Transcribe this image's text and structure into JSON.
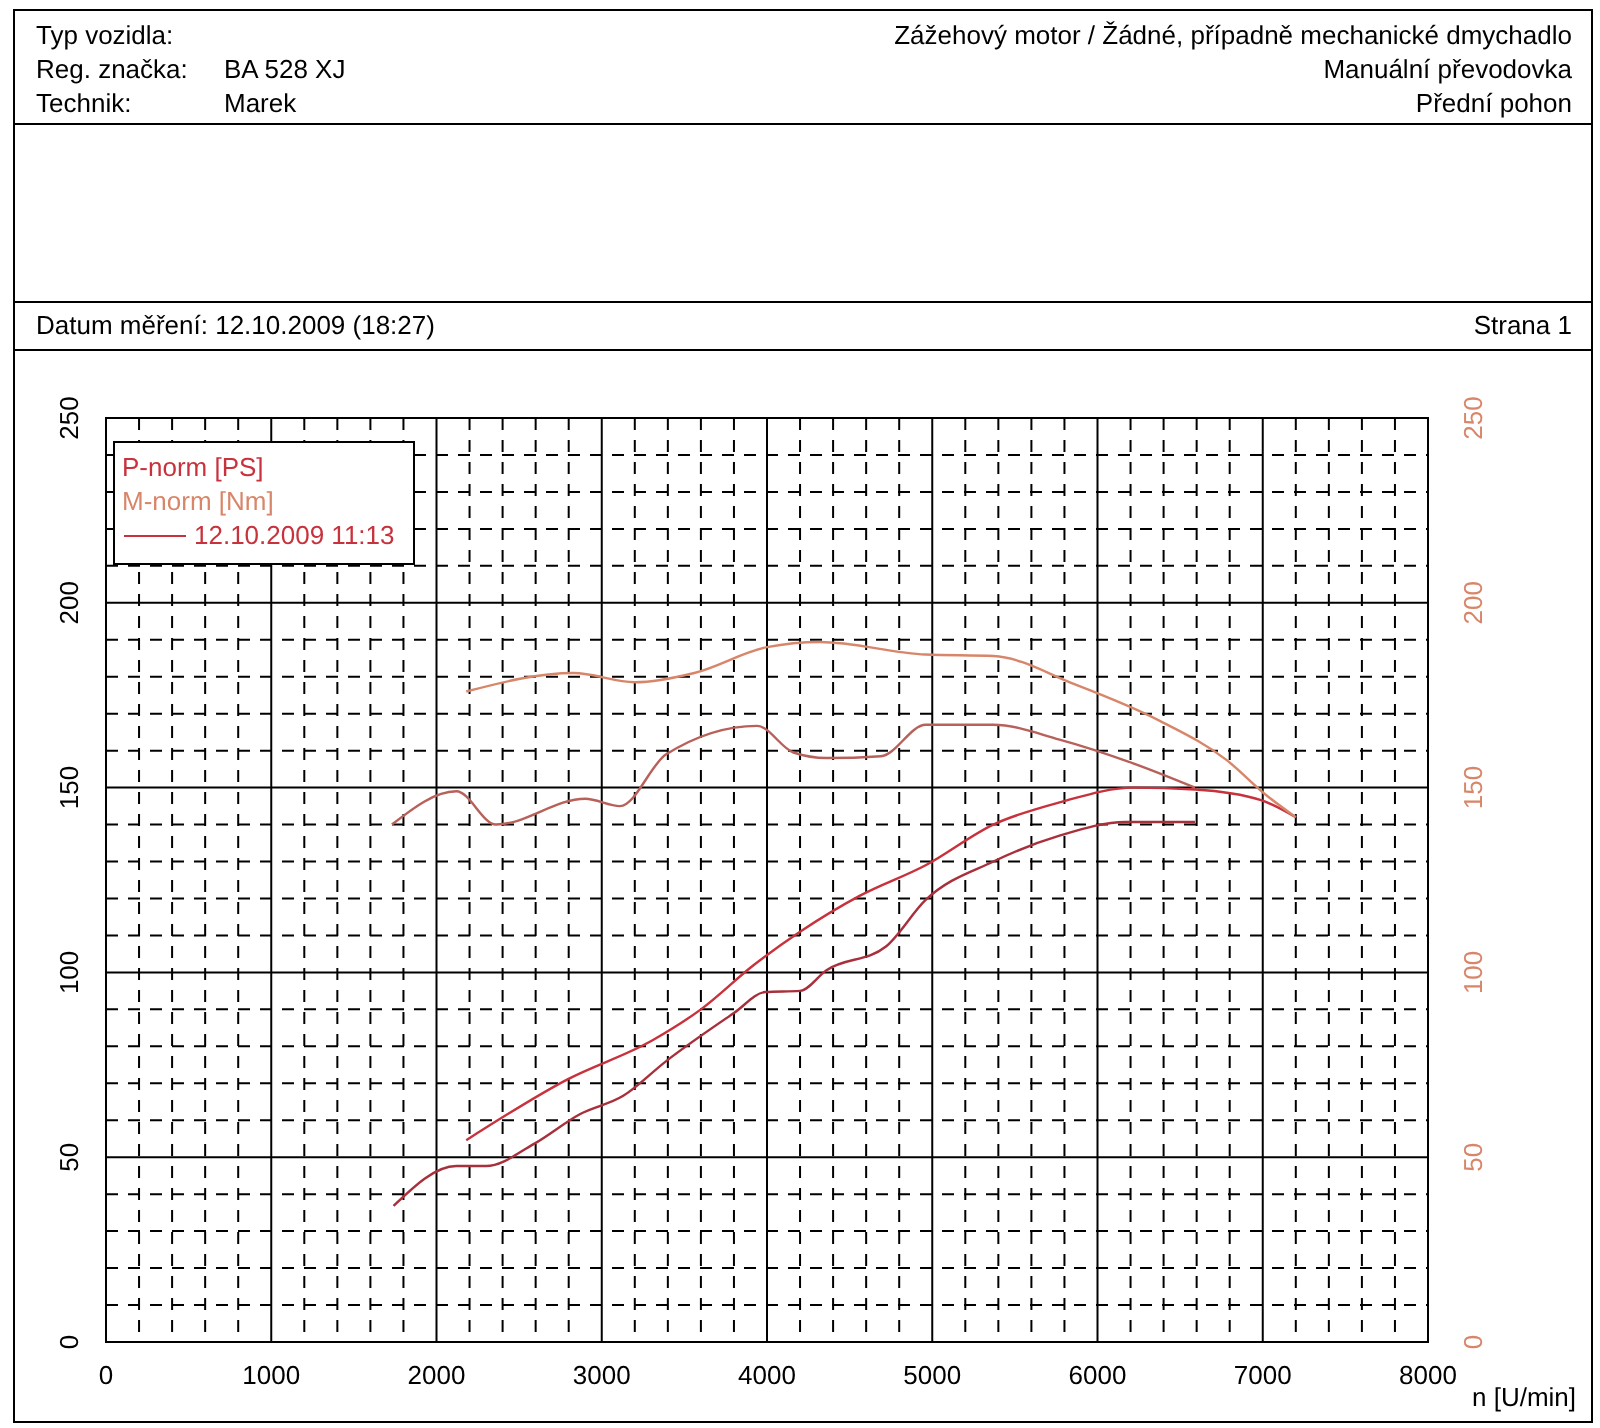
{
  "chart_data": {
    "type": "line",
    "annotations": [
      "Typ vozidla:",
      "Reg. značka:",
      "BA 528 XJ",
      "Technik:",
      "Marek",
      "Zážehový motor / Žádné, případně mechanické dmychadlo",
      "Manuální převodovka",
      "Přední pohon",
      "Datum měření: 12.10.2009 (18:27)",
      "Strana 1"
    ],
    "xlabel": "n [U/min]",
    "legend_title": "12.10.2009 11:13",
    "legend": "top left",
    "grid": true,
    "line_style": "solid",
    "xlim": [
      0,
      8000
    ],
    "xticks": [
      0,
      1000,
      2000,
      3000,
      4000,
      5000,
      6000,
      7000,
      8000
    ],
    "ylim": [
      0,
      250
    ],
    "yticks": [
      0,
      50,
      100,
      150,
      200,
      250
    ],
    "y2lim": [
      0,
      250
    ],
    "y2ticks": [
      0,
      50,
      100,
      150,
      200,
      250
    ],
    "series": [
      {
        "name": "P-norm [PS]",
        "color": "#c8323c",
        "x": [
          2180,
          2790,
          3310,
          3600,
          3920,
          4200,
          4560,
          4960,
          5370,
          5770,
          6220,
          6590,
          6990,
          7200
        ],
        "values": [
          54.6,
          71,
          81.7,
          90,
          102,
          111,
          120.7,
          129,
          140,
          146,
          150,
          149.5,
          146.6,
          142
        ]
      },
      {
        "name": "M-norm [Nm]",
        "axis": "y2",
        "color": "#d8866a",
        "x": [
          2180,
          2830,
          3200,
          3560,
          4000,
          4320,
          4960,
          5370,
          5860,
          6380,
          6780,
          7020,
          7200
        ],
        "values": [
          176,
          181,
          178.5,
          181,
          188,
          189.4,
          186,
          185.6,
          178,
          168,
          157.5,
          148,
          142
        ]
      },
      {
        "color": "#a8303c",
        "x": [
          1740,
          2120,
          2300,
          2590,
          2870,
          3130,
          3390,
          3800,
          3990,
          4200,
          4360,
          4720,
          4960,
          5370,
          5770,
          6170,
          6590
        ],
        "values": [
          36.8,
          47.6,
          47.6,
          53.6,
          61.7,
          66.6,
          76,
          89,
          94.7,
          95,
          100.6,
          107,
          119.6,
          130,
          137,
          140.7,
          140.7
        ]
      },
      {
        "axis": "y2",
        "color": "#b8605a",
        "x": [
          1730,
          2120,
          2360,
          2900,
          3110,
          3390,
          3940,
          4160,
          4360,
          4690,
          4960,
          5370,
          5770,
          6220,
          6590
        ],
        "values": [
          140,
          149,
          140,
          147,
          145,
          159,
          166.7,
          159.5,
          158,
          158.5,
          167,
          167,
          163,
          156.5,
          150
        ]
      }
    ]
  }
}
